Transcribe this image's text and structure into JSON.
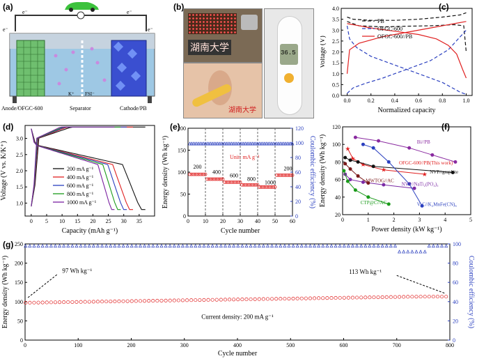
{
  "panel_labels": {
    "a": "(a)",
    "b": "(b)",
    "c": "(c)",
    "d": "(d)",
    "e": "(e)",
    "f": "(f)",
    "g": "(g)"
  },
  "schematic": {
    "electron_left": "e⁻",
    "electron_right": "e⁻",
    "electron_top_left": "e⁻",
    "electron_top_right": "e⁻",
    "anode_label": "Anode/OFGC-600",
    "separator_label": "Separator",
    "cathode_label": "Cathode/PB",
    "ion_k": "K⁺",
    "ion_fsi": "FSI⁻",
    "colors": {
      "car": "#3cc23c",
      "electrolyte": "#9ec8e4",
      "anode": "#6fbf6f",
      "cathode": "#3a4fd0"
    }
  },
  "photos": {
    "led_text": "湖南大学",
    "ear_text": "湖南大学",
    "thermometer_reading": "36.5"
  },
  "chart_data": [
    {
      "id": "c",
      "type": "line",
      "xlabel": "Normalized capacity",
      "ylabel": "Voltage (V)",
      "xlim": [
        -0.05,
        1.05
      ],
      "ylim": [
        0,
        4.0
      ],
      "xticks": [
        "0.0",
        "0.2",
        "0.4",
        "0.6",
        "0.8",
        "1.0"
      ],
      "yticks": [
        "0.0",
        "0.5",
        "1.0",
        "1.5",
        "2.0",
        "2.5",
        "3.0",
        "3.5",
        "4.0"
      ],
      "legend": [
        "PB",
        "OFGC-600",
        "OFGC-600//PB"
      ],
      "series": [
        {
          "name": "PB",
          "style": "dash",
          "color": "#111111",
          "x": [
            0,
            0.05,
            0.2,
            0.4,
            0.6,
            0.8,
            0.95,
            1.0
          ],
          "y": [
            3.6,
            3.5,
            3.45,
            3.45,
            3.5,
            3.6,
            3.7,
            3.8
          ]
        },
        {
          "name": "PB",
          "style": "dash",
          "color": "#111111",
          "x": [
            0,
            0.1,
            0.3,
            0.5,
            0.7,
            0.9,
            0.98,
            1.0
          ],
          "y": [
            3.4,
            3.2,
            3.15,
            3.18,
            3.2,
            3.25,
            3.2,
            2.0
          ]
        },
        {
          "name": "OFGC-600",
          "style": "dash",
          "color": "#2a3fbf",
          "x": [
            0,
            0.05,
            0.15,
            0.3,
            0.5,
            0.7,
            0.85,
            1.0
          ],
          "y": [
            0.1,
            0.35,
            0.55,
            0.8,
            1.2,
            1.6,
            2.1,
            3.0
          ]
        },
        {
          "name": "OFGC-600",
          "style": "dash",
          "color": "#2a3fbf",
          "x": [
            0,
            0.02,
            0.08,
            0.2,
            0.4,
            0.6,
            0.8,
            0.95,
            1.0
          ],
          "y": [
            3.2,
            2.6,
            2.2,
            1.8,
            1.4,
            1.0,
            0.6,
            0.15,
            0.05
          ]
        },
        {
          "name": "OFGC-600//PB",
          "style": "solid",
          "color": "#e02020",
          "x": [
            0,
            0.02,
            0.1,
            0.3,
            0.5,
            0.7,
            0.9,
            1.0
          ],
          "y": [
            1.0,
            2.1,
            2.4,
            2.7,
            2.9,
            3.1,
            3.3,
            3.4
          ]
        },
        {
          "name": "OFGC-600//PB",
          "style": "solid",
          "color": "#e02020",
          "x": [
            0,
            0.05,
            0.2,
            0.4,
            0.6,
            0.75,
            0.85,
            0.92,
            0.97,
            1.0
          ],
          "y": [
            3.3,
            3.25,
            3.1,
            2.95,
            2.8,
            2.6,
            2.3,
            1.9,
            1.2,
            0.8
          ]
        }
      ]
    },
    {
      "id": "d",
      "type": "line",
      "xlabel": "Capacity (mAh g⁻¹)",
      "ylabel": "Voltage (V vs. K/K⁺)",
      "xlim": [
        -2,
        40
      ],
      "ylim": [
        0.6,
        3.4
      ],
      "xticks": [
        "0",
        "5",
        "10",
        "15",
        "20",
        "25",
        "30",
        "35"
      ],
      "yticks": [
        "1.0",
        "1.5",
        "2.0",
        "2.5",
        "3.0"
      ],
      "legend": [
        "200 mA g⁻¹",
        "400 mA g⁻¹",
        "600 mA g⁻¹",
        "800 mA g⁻¹",
        "1000 mA g⁻¹"
      ],
      "series": [
        {
          "name": "200 mA g⁻¹",
          "color": "#111111",
          "cap": 37
        },
        {
          "name": "400 mA g⁻¹",
          "color": "#e02020",
          "cap": 33
        },
        {
          "name": "600 mA g⁻¹",
          "color": "#2a3fbf",
          "cap": 31
        },
        {
          "name": "800 mA g⁻¹",
          "color": "#1a9a1a",
          "cap": 29
        },
        {
          "name": "1000 mA g⁻¹",
          "color": "#7a1fa0",
          "cap": 27
        }
      ]
    },
    {
      "id": "e",
      "type": "scatter",
      "xlabel": "Cycle number",
      "ylabel": "Energy density (Wh kg⁻¹)",
      "y2label": "Coulombic efficiency (%)",
      "xlim": [
        0,
        60
      ],
      "ylim": [
        0,
        200
      ],
      "y2lim": [
        0,
        120
      ],
      "xticks": [
        "0",
        "10",
        "20",
        "30",
        "40",
        "50",
        "60"
      ],
      "yticks": [
        "0",
        "50",
        "100",
        "150",
        "200"
      ],
      "y2ticks": [
        "0",
        "20",
        "40",
        "60",
        "80",
        "100",
        "120"
      ],
      "unit_label": "Unit: mA g⁻¹",
      "rate_labels": [
        {
          "t": "200",
          "x": 3,
          "y": 108
        },
        {
          "t": "400",
          "x": 14,
          "y": 96
        },
        {
          "t": "600",
          "x": 24,
          "y": 88
        },
        {
          "t": "800",
          "x": 34,
          "y": 80
        },
        {
          "t": "1000",
          "x": 44,
          "y": 72
        },
        {
          "t": "200",
          "x": 55,
          "y": 104
        }
      ],
      "energy_steps": [
        {
          "from": 1,
          "to": 10,
          "v": 95
        },
        {
          "from": 11,
          "to": 20,
          "v": 84
        },
        {
          "from": 21,
          "to": 30,
          "v": 77
        },
        {
          "from": 31,
          "to": 40,
          "v": 71
        },
        {
          "from": 41,
          "to": 50,
          "v": 66
        },
        {
          "from": 51,
          "to": 60,
          "v": 93
        }
      ],
      "ce_value": 99
    },
    {
      "id": "f",
      "type": "line",
      "xlabel": "Power density (kW kg⁻¹)",
      "ylabel": "Energy density (Wh kg⁻¹)",
      "xlim": [
        0,
        5
      ],
      "ylim": [
        20,
        120
      ],
      "xticks": [
        "0",
        "1",
        "2",
        "3",
        "4",
        "5"
      ],
      "yticks": [
        "20",
        "40",
        "60",
        "80",
        "100",
        "120"
      ],
      "series": [
        {
          "name": "Bi//PB",
          "color": "#8a2aa0",
          "marker": "circle",
          "x": [
            0.5,
            1.4,
            2.6,
            3.5,
            4.4
          ],
          "y": [
            108,
            104,
            96,
            88,
            80
          ]
        },
        {
          "name": "OFGC-600//PB(This work)",
          "color": "#e02020",
          "marker": "star",
          "x": [
            0.2,
            0.4,
            0.8,
            1.6,
            3.2
          ],
          "y": [
            95,
            84,
            77,
            71,
            66
          ]
        },
        {
          "name": "NVP//graphite",
          "color": "#111111",
          "marker": "circle",
          "x": [
            0.1,
            0.3,
            0.6,
            1.2,
            4.3
          ],
          "y": [
            85,
            82,
            80,
            75,
            68
          ]
        },
        {
          "name": "NVP//NaTi₂(PO₄)₃",
          "color": "#7b2aa5",
          "marker": "circle",
          "x": [
            0.1,
            0.3,
            0.8,
            1.6,
            2.8
          ],
          "y": [
            66,
            60,
            57,
            54,
            50
          ]
        },
        {
          "name": "V₂C//K₂MnFe(CN)₆",
          "color": "#2a3fbf",
          "marker": "circle",
          "x": [
            0.8,
            1.2,
            1.8,
            2.6,
            3.1
          ],
          "y": [
            100,
            96,
            80,
            55,
            30
          ]
        },
        {
          "name": "MWTOG//AC",
          "color": "#7a1a1a",
          "marker": "circle",
          "x": [
            0.1,
            0.3,
            0.6,
            1.0
          ],
          "y": [
            78,
            72,
            64,
            56
          ]
        },
        {
          "name": "CTP@C//AC",
          "color": "#1a9a1a",
          "marker": "circle",
          "x": [
            0.05,
            0.2,
            0.5,
            1.0,
            1.8
          ],
          "y": [
            70,
            58,
            48,
            40,
            32
          ]
        }
      ]
    },
    {
      "id": "g",
      "type": "scatter",
      "xlabel": "Cycle number",
      "ylabel": "Energy density (Wh kg⁻¹)",
      "y2label": "Coulombic efficiency (%)",
      "xlim": [
        0,
        800
      ],
      "ylim": [
        0,
        250
      ],
      "y2lim": [
        0,
        100
      ],
      "xticks": [
        "0",
        "100",
        "200",
        "300",
        "400",
        "500",
        "600",
        "700",
        "800"
      ],
      "yticks": [
        "0",
        "50",
        "100",
        "150",
        "200",
        "250"
      ],
      "y2ticks": [
        "0",
        "20",
        "40",
        "60",
        "80",
        "100"
      ],
      "annotations": [
        "97 Wh kg⁻¹",
        "113 Wh kg⁻¹",
        "Current density: 200 mA g⁻¹"
      ],
      "energy_start": 97,
      "energy_end": 113,
      "ce_value": 98
    }
  ]
}
